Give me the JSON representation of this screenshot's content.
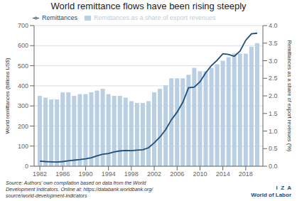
{
  "chart_data": {
    "type": "bar",
    "title": "World remittance flows have been rising steeply",
    "ylabel": "World remittances (billions US$)",
    "y2label": "Remittances as a share of export revenues (%)",
    "annotations": [
      "Source: Authors’ own compilation based on data from the World\nDevelopment Indicators. Online at: https://databank.worldbank.org/\nsource/world-development-indicators",
      "I  Z  A",
      "World of Labor"
    ],
    "x": [
      1982,
      1983,
      1984,
      1985,
      1986,
      1987,
      1988,
      1989,
      1990,
      1991,
      1992,
      1993,
      1994,
      1995,
      1996,
      1997,
      1998,
      1999,
      2000,
      2001,
      2002,
      2003,
      2004,
      2005,
      2006,
      2007,
      2008,
      2009,
      2010,
      2011,
      2012,
      2013,
      2014,
      2015,
      2016,
      2017,
      2018,
      2019,
      2020
    ],
    "series": [
      {
        "name": "Remittances",
        "type": "line",
        "color": "#1f4e79",
        "values": [
          25,
          23,
          22,
          21,
          23,
          27,
          30,
          33,
          37,
          42,
          52,
          60,
          63,
          71,
          76,
          78,
          77,
          80,
          82,
          92,
          116,
          145,
          182,
          231,
          269,
          318,
          390,
          394,
          420,
          465,
          501,
          527,
          560,
          556,
          547,
          573,
          627,
          659,
          662
        ]
      },
      {
        "name": "Remittances as a share of export revenues",
        "type": "bar",
        "axis": "y2",
        "color": "#b8cfe4",
        "values": [
          2.0,
          1.95,
          1.9,
          1.9,
          2.1,
          2.1,
          2.0,
          2.05,
          2.05,
          2.1,
          2.15,
          2.2,
          2.05,
          2.0,
          2.0,
          1.95,
          1.85,
          1.8,
          1.8,
          1.85,
          2.1,
          2.2,
          2.3,
          2.5,
          2.5,
          2.5,
          2.6,
          2.8,
          2.7,
          2.7,
          2.8,
          2.9,
          3.0,
          3.1,
          3.2,
          3.2,
          3.2,
          3.4,
          3.5
        ]
      }
    ],
    "xlim": [
      1981,
      2021
    ],
    "xticks": [
      1982,
      1986,
      1990,
      1994,
      1998,
      2002,
      2006,
      2010,
      2014,
      2018
    ],
    "ylim": [
      0,
      700
    ],
    "yticks": [
      0,
      100,
      200,
      300,
      400,
      500,
      600,
      700
    ],
    "y2lim": [
      0,
      4.0
    ],
    "y2ticks": [
      {
        "value": 0,
        "label": "0.0"
      },
      0.5,
      {
        "value": 1,
        "label": "1.0"
      },
      1.5,
      {
        "value": 2,
        "label": "2.0"
      },
      2.5,
      {
        "value": 3,
        "label": "3.0"
      },
      3.5,
      {
        "value": 4,
        "label": "4.0"
      }
    ],
    "grid": true,
    "legend": "upper left"
  }
}
